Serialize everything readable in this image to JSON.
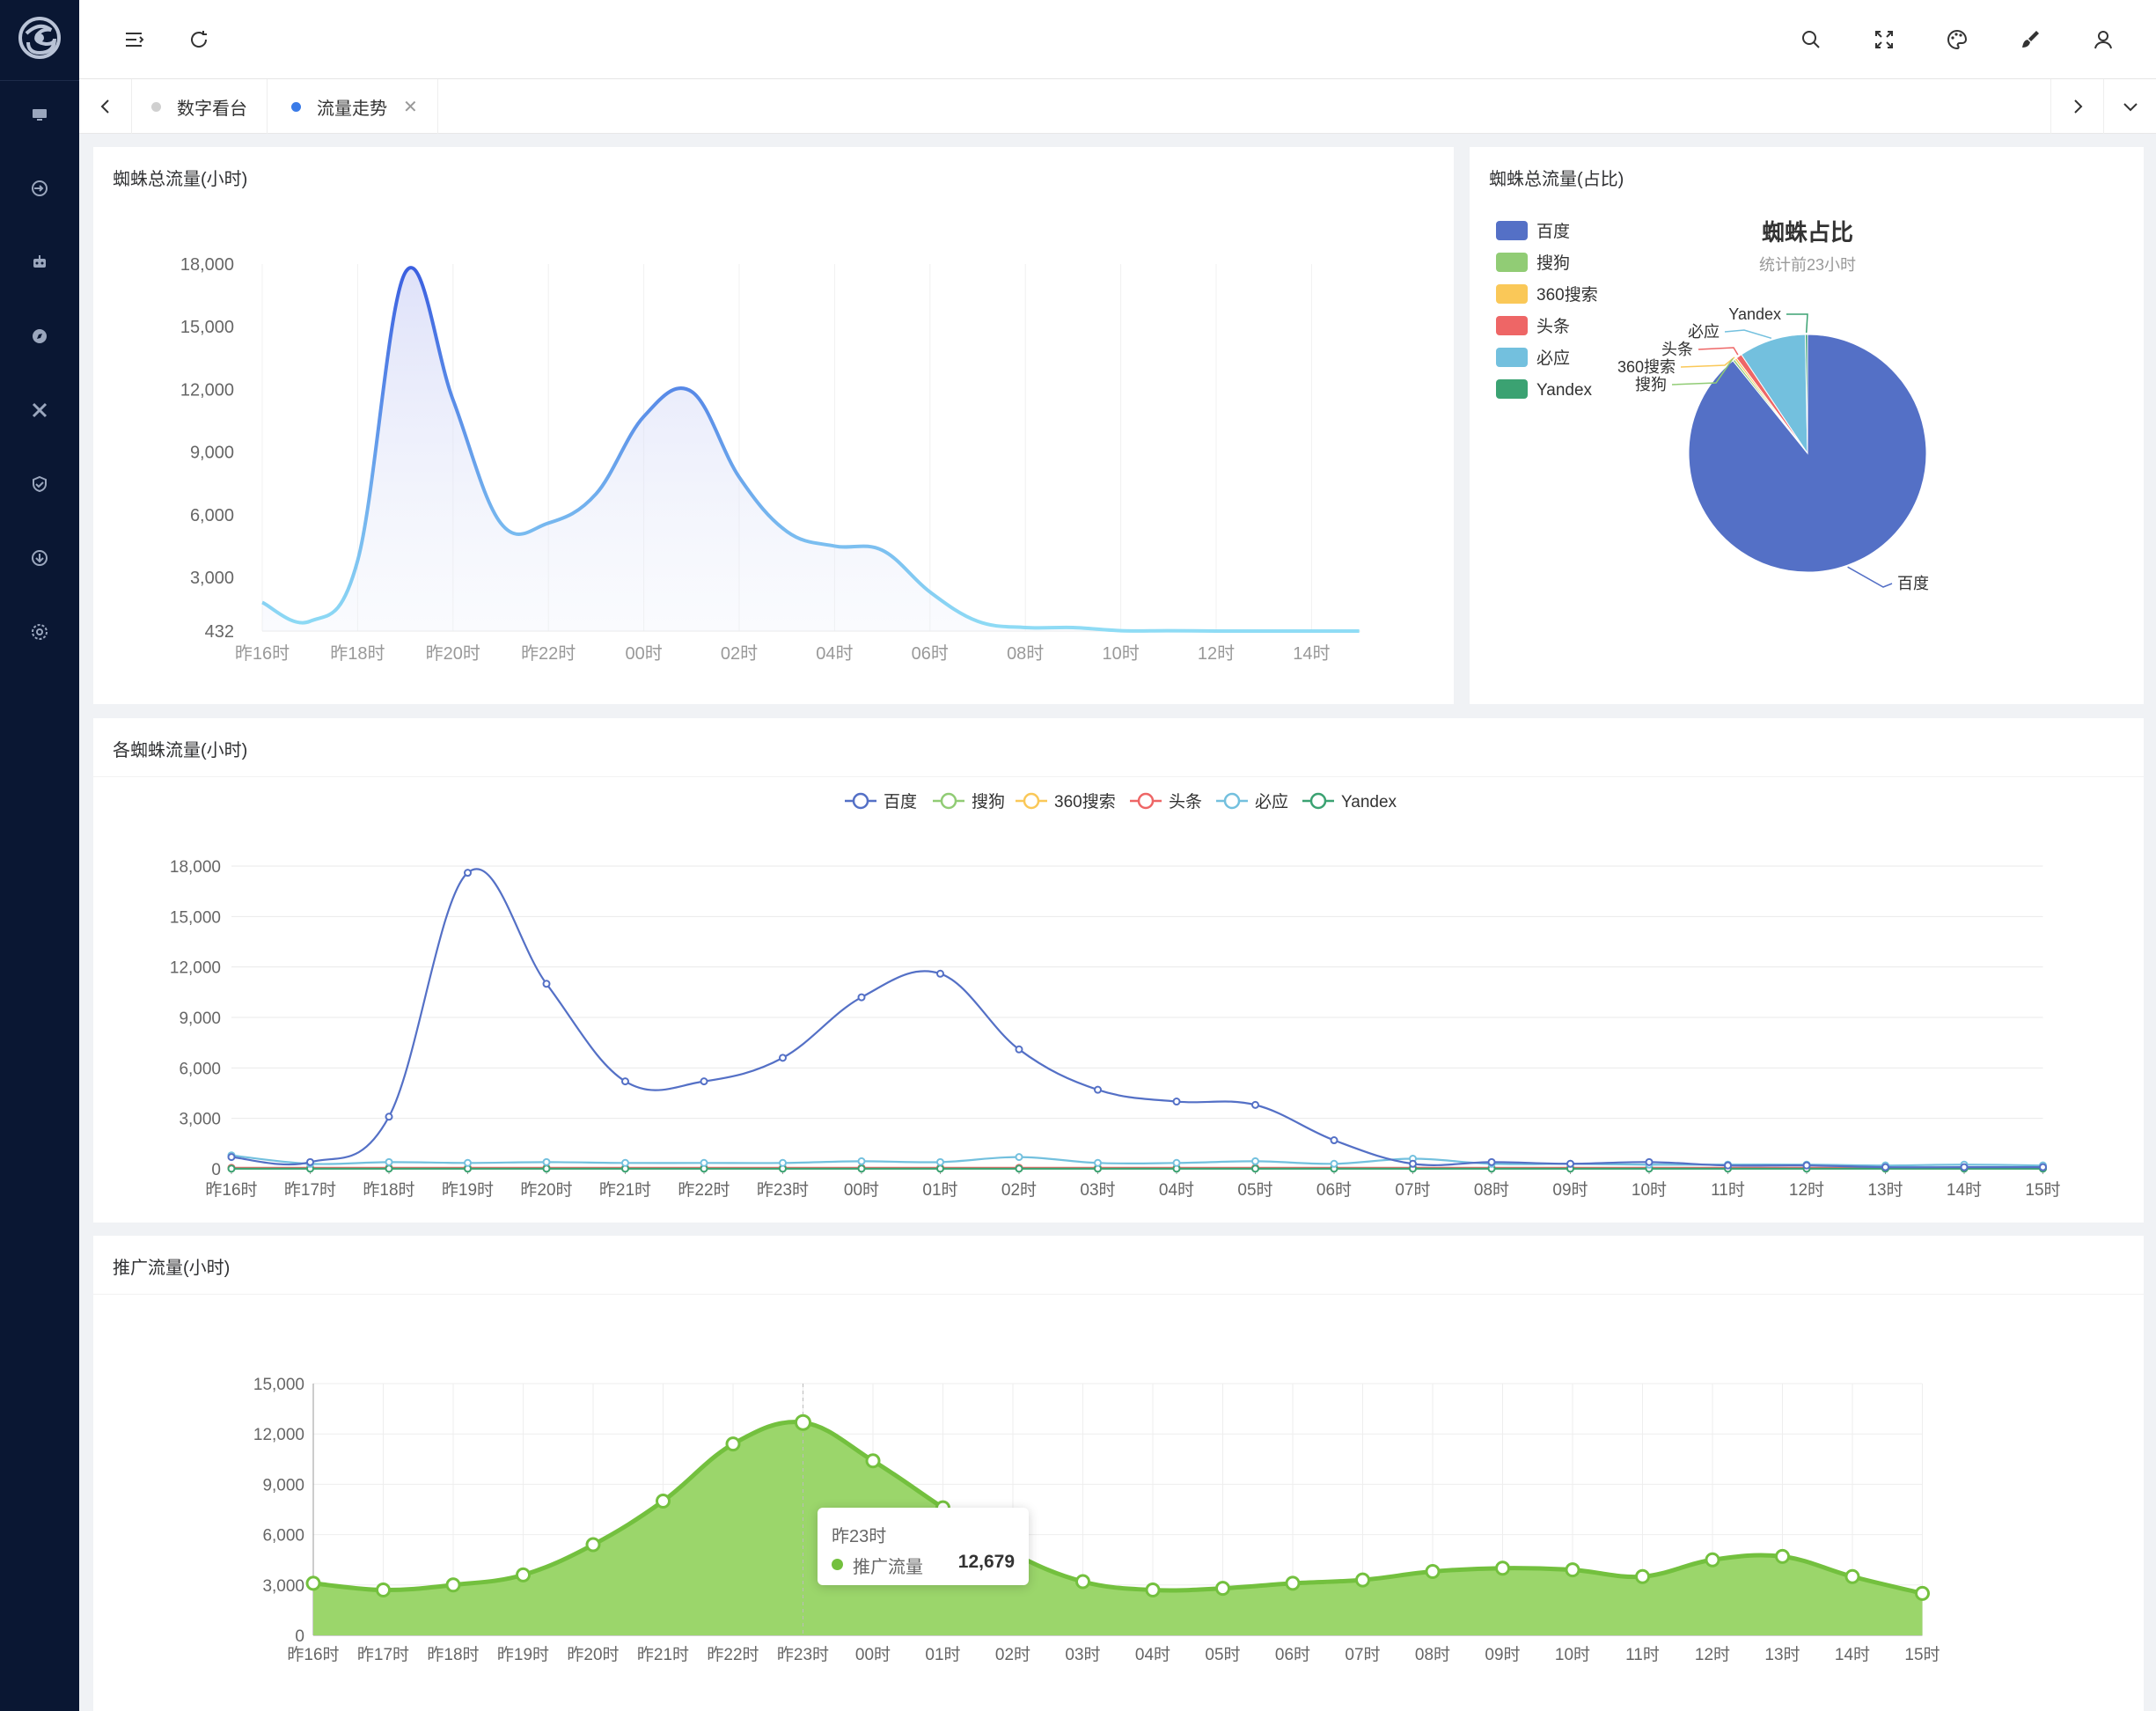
{
  "tabs": [
    {
      "label": "数字看台",
      "active": false
    },
    {
      "label": "流量走势",
      "active": true
    }
  ],
  "panels": {
    "total_hourly": "蜘蛛总流量(小时)",
    "share": "蜘蛛总流量(占比)",
    "per_spider": "各蜘蛛流量(小时)",
    "promo": "推广流量(小时)"
  },
  "colors": {
    "sidebar": "#0a1733",
    "active_tab_dot": "#3a7be8",
    "baidu": "#5470c6",
    "sogou": "#91cc75",
    "s360": "#fac858",
    "toutiao": "#ee6666",
    "biying": "#73c0de",
    "yandex": "#3ba272",
    "promo": "#73c03e"
  },
  "sidebar_icons": [
    "monitor-icon",
    "login-icon",
    "robot-icon",
    "compass-icon",
    "tools-icon",
    "shield-icon",
    "download-icon",
    "settings-icon"
  ],
  "header_icons": [
    "menu-fold-icon",
    "refresh-icon",
    "search-icon",
    "fullscreen-icon",
    "palette-icon",
    "brush-icon",
    "user-icon"
  ],
  "tooltip": {
    "title": "昨23时",
    "name": "推广流量",
    "value": "12,679"
  },
  "chart_data": [
    {
      "type": "area",
      "title": "蜘蛛总流量(小时)",
      "x": [
        "昨16时",
        "昨17时",
        "昨18时",
        "昨19时",
        "昨20时",
        "昨21时",
        "昨22时",
        "昨23时",
        "00时",
        "01时",
        "02时",
        "03时",
        "04时",
        "05时",
        "06时",
        "07时",
        "08时",
        "09时",
        "10时",
        "11时",
        "12时",
        "13时",
        "14时",
        "15时"
      ],
      "x_ticks": [
        "昨16时",
        "昨18时",
        "昨20时",
        "昨22时",
        "00时",
        "02时",
        "04时",
        "06时",
        "08时",
        "10时",
        "12时",
        "14时"
      ],
      "values": [
        1800,
        900,
        3800,
        17600,
        11500,
        5600,
        5600,
        7000,
        10700,
        11900,
        7800,
        5200,
        4500,
        4300,
        2300,
        900,
        600,
        600,
        450,
        450,
        432,
        432,
        432,
        432
      ],
      "ylim": [
        432,
        18000
      ],
      "y_ticks": [
        "432",
        "3,000",
        "6,000",
        "9,000",
        "12,000",
        "15,000",
        "18,000"
      ]
    },
    {
      "type": "pie",
      "title": "蜘蛛占比",
      "subtitle": "统计前23小时",
      "legend_position": "top-left",
      "slices": [
        {
          "name": "百度",
          "value": 89.2
        },
        {
          "name": "搜狗",
          "value": 0.3
        },
        {
          "name": "360搜索",
          "value": 0.3
        },
        {
          "name": "头条",
          "value": 0.8
        },
        {
          "name": "必应",
          "value": 9.1
        },
        {
          "name": "Yandex",
          "value": 0.3
        }
      ]
    },
    {
      "type": "line",
      "title": "各蜘蛛流量(小时)",
      "categories": [
        "昨16时",
        "昨17时",
        "昨18时",
        "昨19时",
        "昨20时",
        "昨21时",
        "昨22时",
        "昨23时",
        "00时",
        "01时",
        "02时",
        "03时",
        "04时",
        "05时",
        "06时",
        "07时",
        "08时",
        "09时",
        "10时",
        "11时",
        "12时",
        "13时",
        "14时",
        "15时"
      ],
      "ylim": [
        0,
        18000
      ],
      "y_ticks": [
        "0",
        "3,000",
        "6,000",
        "9,000",
        "12,000",
        "15,000",
        "18,000"
      ],
      "legend_position": "top-center",
      "series": [
        {
          "name": "百度",
          "values": [
            700,
            400,
            3100,
            17600,
            11000,
            5200,
            5200,
            6600,
            10200,
            11600,
            7100,
            4700,
            4000,
            3800,
            1700,
            300,
            400,
            300,
            400,
            200,
            200,
            100,
            100,
            100
          ]
        },
        {
          "name": "搜狗",
          "values": [
            20,
            20,
            20,
            20,
            20,
            20,
            20,
            20,
            20,
            20,
            20,
            20,
            20,
            20,
            20,
            20,
            20,
            20,
            20,
            20,
            20,
            20,
            20,
            20
          ]
        },
        {
          "name": "360搜索",
          "values": [
            30,
            30,
            30,
            30,
            30,
            30,
            30,
            30,
            30,
            30,
            30,
            30,
            30,
            30,
            30,
            30,
            30,
            30,
            30,
            30,
            30,
            30,
            30,
            30
          ]
        },
        {
          "name": "头条",
          "values": [
            60,
            60,
            60,
            60,
            60,
            60,
            60,
            60,
            60,
            60,
            60,
            60,
            60,
            60,
            60,
            60,
            60,
            60,
            60,
            60,
            60,
            60,
            60,
            60
          ]
        },
        {
          "name": "必应",
          "values": [
            800,
            300,
            400,
            350,
            400,
            350,
            350,
            350,
            450,
            400,
            700,
            350,
            350,
            450,
            300,
            600,
            300,
            300,
            250,
            250,
            250,
            200,
            250,
            200
          ]
        },
        {
          "name": "Yandex",
          "values": [
            10,
            10,
            10,
            10,
            10,
            10,
            10,
            10,
            10,
            10,
            10,
            10,
            10,
            10,
            10,
            10,
            10,
            10,
            10,
            10,
            10,
            10,
            10,
            10
          ]
        }
      ]
    },
    {
      "type": "area",
      "title": "推广流量(小时)",
      "categories": [
        "昨16时",
        "昨17时",
        "昨18时",
        "昨19时",
        "昨20时",
        "昨21时",
        "昨22时",
        "昨23时",
        "00时",
        "01时",
        "02时",
        "03时",
        "04时",
        "05时",
        "06时",
        "07时",
        "08时",
        "09时",
        "10时",
        "11时",
        "12时",
        "13时",
        "14时",
        "15时"
      ],
      "series": [
        {
          "name": "推广流量",
          "values": [
            3100,
            2700,
            3000,
            3600,
            5400,
            8000,
            11400,
            12679,
            10400,
            7600,
            4900,
            3200,
            2700,
            2800,
            3100,
            3300,
            3800,
            4000,
            3900,
            3500,
            4500,
            4700,
            3500,
            2500
          ]
        }
      ],
      "ylim": [
        0,
        15000
      ],
      "y_ticks": [
        "0",
        "3,000",
        "6,000",
        "9,000",
        "12,000",
        "15,000"
      ],
      "highlight_index": 7
    }
  ]
}
